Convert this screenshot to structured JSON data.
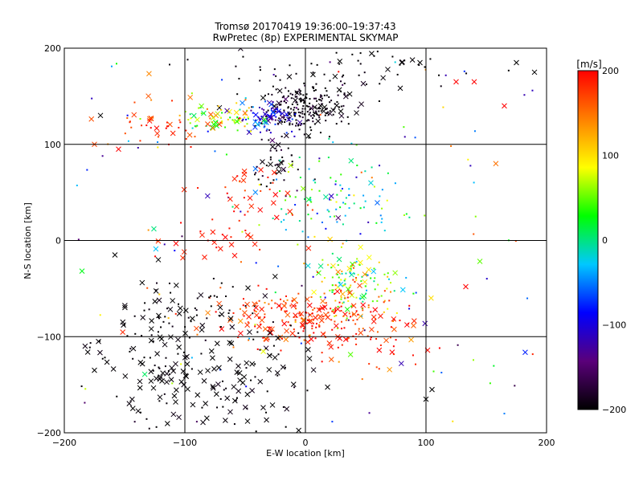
{
  "chart_data": {
    "type": "scatter",
    "title_line1": "Tromsø 20170419 19:36:00–19:37:43",
    "title_line2": "RwPretec (8p) EXPERIMENTAL SKYMAP",
    "xlabel": "E-W location [km]",
    "ylabel": "N-S location [km]",
    "xlim": [
      -200,
      200
    ],
    "ylim": [
      -200,
      200
    ],
    "x_ticks": [
      -200,
      -100,
      0,
      100,
      200
    ],
    "y_ticks": [
      -200,
      -100,
      0,
      100,
      200
    ],
    "grid": "lines at -100, 0, 100 on both axes",
    "marker_types": [
      "dot",
      "x"
    ],
    "colorbar": {
      "label": "[m/s]",
      "range": [
        -200,
        200
      ],
      "ticks": [
        -200,
        -100,
        0,
        100,
        200
      ],
      "colors": [
        "#000000",
        "#5a007a",
        "#0000ff",
        "#00c8ff",
        "#00ff00",
        "#ffff00",
        "#ff8000",
        "#ff0000"
      ]
    },
    "clusters": [
      {
        "center": [
          0,
          138
        ],
        "spread": [
          18,
          12
        ],
        "count": 220,
        "velocity_mean": -195,
        "velocity_sd": 10,
        "x_fraction": 0.1
      },
      {
        "center": [
          -35,
          128
        ],
        "spread": [
          14,
          9
        ],
        "count": 80,
        "velocity_mean": -110,
        "velocity_sd": 35,
        "x_fraction": 0.3
      },
      {
        "center": [
          -70,
          128
        ],
        "spread": [
          18,
          8
        ],
        "count": 70,
        "velocity_mean": 60,
        "velocity_sd": 55,
        "x_fraction": 0.3
      },
      {
        "center": [
          -120,
          120
        ],
        "spread": [
          22,
          12
        ],
        "count": 40,
        "velocity_mean": 175,
        "velocity_sd": 20,
        "x_fraction": 0.35
      },
      {
        "center": [
          40,
          180
        ],
        "spread": [
          60,
          15
        ],
        "count": 60,
        "velocity_mean": -198,
        "velocity_sd": 5,
        "x_fraction": 0.15
      },
      {
        "center": [
          -25,
          80
        ],
        "spread": [
          12,
          20
        ],
        "count": 45,
        "velocity_mean": -190,
        "velocity_sd": 15,
        "x_fraction": 0.25
      },
      {
        "center": [
          25,
          40
        ],
        "spread": [
          30,
          25
        ],
        "count": 110,
        "velocity_mean": 0,
        "velocity_sd": 50,
        "x_fraction": 0.05
      },
      {
        "center": [
          -50,
          40
        ],
        "spread": [
          20,
          20
        ],
        "count": 35,
        "velocity_mean": 190,
        "velocity_sd": 10,
        "x_fraction": 0.5
      },
      {
        "center": [
          -80,
          2
        ],
        "spread": [
          25,
          10
        ],
        "count": 25,
        "velocity_mean": 190,
        "velocity_sd": 10,
        "x_fraction": 0.4
      },
      {
        "center": [
          40,
          -45
        ],
        "spread": [
          15,
          18
        ],
        "count": 130,
        "velocity_mean": 60,
        "velocity_sd": 60,
        "x_fraction": 0.2
      },
      {
        "center": [
          0,
          -80
        ],
        "spread": [
          35,
          14
        ],
        "count": 220,
        "velocity_mean": 185,
        "velocity_sd": 25,
        "x_fraction": 0.3
      },
      {
        "center": [
          -110,
          -130
        ],
        "spread": [
          35,
          30
        ],
        "count": 130,
        "velocity_mean": -198,
        "velocity_sd": 4,
        "x_fraction": 0.6
      },
      {
        "center": [
          -40,
          -140
        ],
        "spread": [
          25,
          35
        ],
        "count": 70,
        "velocity_mean": -198,
        "velocity_sd": 4,
        "x_fraction": 0.7
      },
      {
        "center": [
          -100,
          -80
        ],
        "spread": [
          30,
          20
        ],
        "count": 60,
        "velocity_mean": -198,
        "velocity_sd": 5,
        "x_fraction": 0.3
      },
      {
        "center": [
          60,
          -100
        ],
        "spread": [
          30,
          20
        ],
        "count": 45,
        "velocity_mean": 185,
        "velocity_sd": 20,
        "x_fraction": 0.3
      }
    ],
    "outliers": [
      {
        "x": 125,
        "y": 165,
        "v": 200,
        "m": "x"
      },
      {
        "x": 140,
        "y": 165,
        "v": 200,
        "m": "x"
      },
      {
        "x": 165,
        "y": 140,
        "v": 200,
        "m": "x"
      },
      {
        "x": 175,
        "y": 185,
        "v": -200,
        "m": "x"
      },
      {
        "x": 190,
        "y": 175,
        "v": -200,
        "m": "x"
      },
      {
        "x": 133,
        "y": -48,
        "v": 200,
        "m": "x"
      },
      {
        "x": 105,
        "y": -155,
        "v": -200,
        "m": "x"
      },
      {
        "x": 100,
        "y": -165,
        "v": -200,
        "m": "x"
      },
      {
        "x": 165,
        "y": -180,
        "v": -50,
        "m": "dot"
      },
      {
        "x": -175,
        "y": -135,
        "v": -200,
        "m": "x"
      },
      {
        "x": -158,
        "y": -15,
        "v": -200,
        "m": "x"
      },
      {
        "x": -122,
        "y": -20,
        "v": -200,
        "m": "x"
      },
      {
        "x": -170,
        "y": 130,
        "v": -200,
        "m": "x"
      },
      {
        "x": -155,
        "y": 95,
        "v": 200,
        "m": "x"
      },
      {
        "x": -175,
        "y": 100,
        "v": 170,
        "m": "x"
      },
      {
        "x": 95,
        "y": 185,
        "v": -200,
        "m": "x"
      },
      {
        "x": 80,
        "y": 185,
        "v": -200,
        "m": "x"
      }
    ]
  }
}
